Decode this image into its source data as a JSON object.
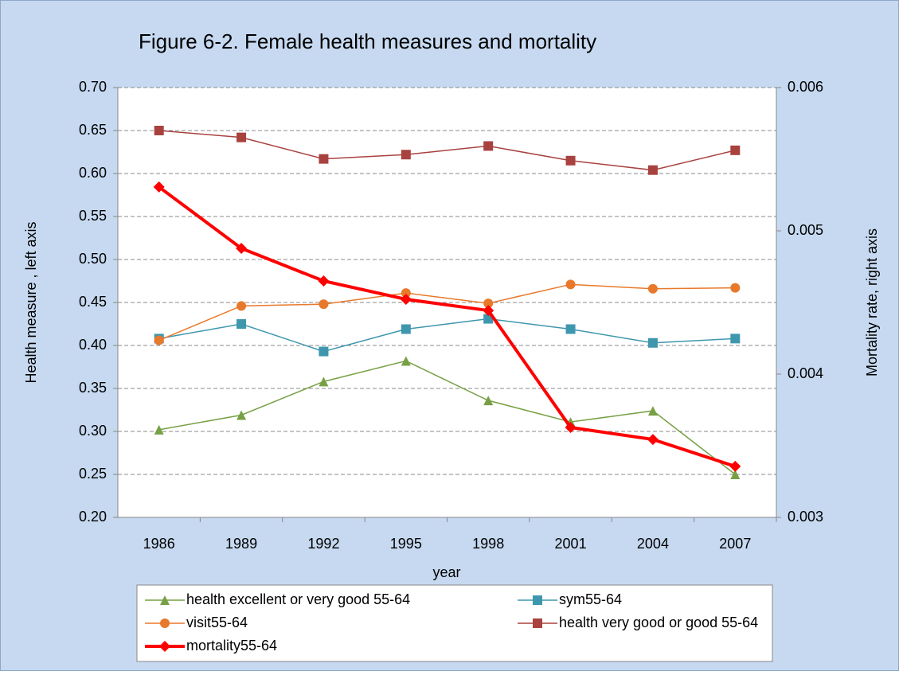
{
  "chart_data": {
    "type": "line",
    "title": "Figure 6-2. Female health measures and mortality",
    "x_label": "year",
    "y_label": "Health measure , left axis",
    "y2_label": "Mortality rate, right axis",
    "categories": [
      "1986",
      "1989",
      "1992",
      "1995",
      "1998",
      "2001",
      "2004",
      "2007"
    ],
    "ylim": [
      0.2,
      0.7
    ],
    "yticks": [
      {
        "value": 0.2,
        "label": "0.20"
      },
      0.25,
      {
        "value": 0.3,
        "label": "0.30"
      },
      0.35,
      {
        "value": 0.4,
        "label": "0.40"
      },
      0.45,
      {
        "value": 0.5,
        "label": "0.50"
      },
      0.55,
      {
        "value": 0.6,
        "label": "0.60"
      },
      0.65,
      {
        "value": 0.7,
        "label": "0.70"
      }
    ],
    "y2lim": [
      0.003,
      0.006
    ],
    "y2ticks": [
      0.003,
      0.004,
      0.005,
      0.006
    ],
    "grid": true,
    "legend": "bottom",
    "series": [
      {
        "name": "health excellent or very good 55-64",
        "color": "#77a045",
        "marker": "triangle",
        "values": [
          0.302,
          0.319,
          0.358,
          0.382,
          0.336,
          0.311,
          0.324,
          0.25
        ]
      },
      {
        "name": "sym55-64",
        "color": "#3f97ad",
        "marker": "square",
        "values": [
          0.408,
          0.425,
          0.393,
          0.419,
          0.431,
          0.419,
          0.403,
          0.408
        ]
      },
      {
        "name": "visit55-64",
        "color": "#e8792b",
        "marker": "circle",
        "values": [
          0.406,
          0.446,
          0.448,
          0.461,
          0.449,
          0.471,
          0.466,
          0.467
        ]
      },
      {
        "name": "health very good or good 55-64",
        "color": "#a8423f",
        "marker": "square",
        "values": [
          0.65,
          0.642,
          0.617,
          0.622,
          0.632,
          0.615,
          0.604,
          0.627
        ]
      },
      {
        "name": "mortality55-64",
        "color": "#ff0000",
        "marker": "diamond",
        "axis": "y2",
        "width": 4,
        "values": [
          0.005306,
          0.004878,
          0.00465,
          0.004522,
          0.004444,
          0.003628,
          0.003544,
          0.003356
        ]
      }
    ]
  }
}
